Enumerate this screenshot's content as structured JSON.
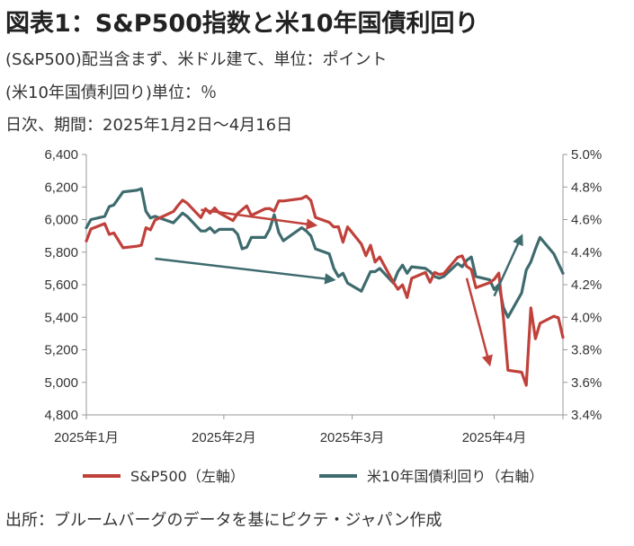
{
  "header": {
    "title": "図表1：S&P500指数と米10年国債利回り",
    "subtitle_1": "(S&P500)配当含まず、米ドル建て、単位：ポイント",
    "subtitle_2": "(米10年国債利回り)単位：％",
    "subtitle_3": "日次、期間：2025年1月2日～4月16日"
  },
  "source": "出所：ブルームバーグのデータを基にピクテ・ジャパン作成",
  "colors": {
    "sp500": "#c0413b",
    "yield": "#3e6b6e",
    "axis": "#999999"
  },
  "chart_data": {
    "type": "line",
    "title": "図表1：S&P500指数と米10年国債利回り",
    "x_tick_labels": [
      "2025年1月",
      "2025年2月",
      "2025年3月",
      "2025年4月"
    ],
    "x_range": [
      "2025-01-02",
      "2025-04-16"
    ],
    "y_left": {
      "ylim": [
        4800,
        6400
      ],
      "ticks": [
        "4,800",
        "5,000",
        "5,200",
        "5,400",
        "5,600",
        "5,800",
        "6,000",
        "6,200",
        "6,400"
      ]
    },
    "y_right": {
      "ylim": [
        3.4,
        5.0
      ],
      "ticks": [
        "3.4%",
        "3.6%",
        "3.8%",
        "4.0%",
        "4.2%",
        "4.4%",
        "4.6%",
        "4.8%",
        "5.0%"
      ]
    },
    "grid": false,
    "legend_position": "bottom",
    "series": [
      {
        "name": "S&P500（左軸）",
        "axis": "left",
        "color": "#c0413b",
        "points": [
          [
            "2025-01-02",
            5868
          ],
          [
            "2025-01-03",
            5942
          ],
          [
            "2025-01-06",
            5975
          ],
          [
            "2025-01-07",
            5909
          ],
          [
            "2025-01-08",
            5918
          ],
          [
            "2025-01-10",
            5827
          ],
          [
            "2025-01-13",
            5836
          ],
          [
            "2025-01-14",
            5842
          ],
          [
            "2025-01-15",
            5950
          ],
          [
            "2025-01-16",
            5937
          ],
          [
            "2025-01-17",
            5997
          ],
          [
            "2025-01-21",
            6049
          ],
          [
            "2025-01-22",
            6086
          ],
          [
            "2025-01-23",
            6119
          ],
          [
            "2025-01-24",
            6101
          ],
          [
            "2025-01-27",
            6012
          ],
          [
            "2025-01-28",
            6067
          ],
          [
            "2025-01-29",
            6039
          ],
          [
            "2025-01-30",
            6071
          ],
          [
            "2025-01-31",
            6041
          ],
          [
            "2025-02-03",
            5994
          ],
          [
            "2025-02-04",
            6037
          ],
          [
            "2025-02-05",
            6061
          ],
          [
            "2025-02-06",
            6084
          ],
          [
            "2025-02-07",
            6026
          ],
          [
            "2025-02-10",
            6066
          ],
          [
            "2025-02-11",
            6068
          ],
          [
            "2025-02-12",
            6052
          ],
          [
            "2025-02-13",
            6115
          ],
          [
            "2025-02-14",
            6114
          ],
          [
            "2025-02-18",
            6129
          ],
          [
            "2025-02-19",
            6144
          ],
          [
            "2025-02-20",
            6117
          ],
          [
            "2025-02-21",
            6013
          ],
          [
            "2025-02-24",
            5983
          ],
          [
            "2025-02-25",
            5955
          ],
          [
            "2025-02-26",
            5956
          ],
          [
            "2025-02-27",
            5861
          ],
          [
            "2025-02-28",
            5955
          ],
          [
            "2025-03-03",
            5850
          ],
          [
            "2025-03-04",
            5778
          ],
          [
            "2025-03-05",
            5842
          ],
          [
            "2025-03-06",
            5739
          ],
          [
            "2025-03-07",
            5770
          ],
          [
            "2025-03-10",
            5615
          ],
          [
            "2025-03-11",
            5572
          ],
          [
            "2025-03-12",
            5599
          ],
          [
            "2025-03-13",
            5521
          ],
          [
            "2025-03-14",
            5639
          ],
          [
            "2025-03-17",
            5675
          ],
          [
            "2025-03-18",
            5615
          ],
          [
            "2025-03-19",
            5675
          ],
          [
            "2025-03-20",
            5663
          ],
          [
            "2025-03-21",
            5668
          ],
          [
            "2025-03-24",
            5768
          ],
          [
            "2025-03-25",
            5777
          ],
          [
            "2025-03-26",
            5712
          ],
          [
            "2025-03-27",
            5693
          ],
          [
            "2025-03-28",
            5581
          ],
          [
            "2025-03-31",
            5612
          ],
          [
            "2025-04-01",
            5633
          ],
          [
            "2025-04-02",
            5671
          ],
          [
            "2025-04-03",
            5397
          ],
          [
            "2025-04-04",
            5074
          ],
          [
            "2025-04-07",
            5062
          ],
          [
            "2025-04-08",
            4982
          ],
          [
            "2025-04-09",
            5457
          ],
          [
            "2025-04-10",
            5268
          ],
          [
            "2025-04-11",
            5363
          ],
          [
            "2025-04-14",
            5406
          ],
          [
            "2025-04-15",
            5397
          ],
          [
            "2025-04-16",
            5276
          ]
        ]
      },
      {
        "name": "米10年国債利回り（右軸）",
        "axis": "right",
        "color": "#3e6b6e",
        "points": [
          [
            "2025-01-02",
            4.55
          ],
          [
            "2025-01-03",
            4.6
          ],
          [
            "2025-01-06",
            4.62
          ],
          [
            "2025-01-07",
            4.68
          ],
          [
            "2025-01-08",
            4.69
          ],
          [
            "2025-01-10",
            4.77
          ],
          [
            "2025-01-13",
            4.78
          ],
          [
            "2025-01-14",
            4.79
          ],
          [
            "2025-01-15",
            4.65
          ],
          [
            "2025-01-16",
            4.61
          ],
          [
            "2025-01-17",
            4.62
          ],
          [
            "2025-01-21",
            4.58
          ],
          [
            "2025-01-22",
            4.61
          ],
          [
            "2025-01-23",
            4.64
          ],
          [
            "2025-01-24",
            4.62
          ],
          [
            "2025-01-27",
            4.53
          ],
          [
            "2025-01-28",
            4.53
          ],
          [
            "2025-01-29",
            4.55
          ],
          [
            "2025-01-30",
            4.52
          ],
          [
            "2025-01-31",
            4.54
          ],
          [
            "2025-02-03",
            4.54
          ],
          [
            "2025-02-04",
            4.51
          ],
          [
            "2025-02-05",
            4.42
          ],
          [
            "2025-02-06",
            4.43
          ],
          [
            "2025-02-07",
            4.49
          ],
          [
            "2025-02-10",
            4.49
          ],
          [
            "2025-02-11",
            4.54
          ],
          [
            "2025-02-12",
            4.63
          ],
          [
            "2025-02-13",
            4.52
          ],
          [
            "2025-02-14",
            4.47
          ],
          [
            "2025-02-18",
            4.55
          ],
          [
            "2025-02-19",
            4.53
          ],
          [
            "2025-02-20",
            4.5
          ],
          [
            "2025-02-21",
            4.42
          ],
          [
            "2025-02-24",
            4.39
          ],
          [
            "2025-02-25",
            4.3
          ],
          [
            "2025-02-26",
            4.25
          ],
          [
            "2025-02-27",
            4.27
          ],
          [
            "2025-02-28",
            4.21
          ],
          [
            "2025-03-03",
            4.16
          ],
          [
            "2025-03-04",
            4.22
          ],
          [
            "2025-03-05",
            4.28
          ],
          [
            "2025-03-06",
            4.28
          ],
          [
            "2025-03-07",
            4.3
          ],
          [
            "2025-03-10",
            4.21
          ],
          [
            "2025-03-11",
            4.28
          ],
          [
            "2025-03-12",
            4.32
          ],
          [
            "2025-03-13",
            4.27
          ],
          [
            "2025-03-14",
            4.31
          ],
          [
            "2025-03-17",
            4.3
          ],
          [
            "2025-03-18",
            4.28
          ],
          [
            "2025-03-19",
            4.25
          ],
          [
            "2025-03-20",
            4.24
          ],
          [
            "2025-03-21",
            4.25
          ],
          [
            "2025-03-24",
            4.33
          ],
          [
            "2025-03-25",
            4.31
          ],
          [
            "2025-03-26",
            4.35
          ],
          [
            "2025-03-27",
            4.37
          ],
          [
            "2025-03-28",
            4.25
          ],
          [
            "2025-03-31",
            4.23
          ],
          [
            "2025-04-01",
            4.17
          ],
          [
            "2025-04-02",
            4.2
          ],
          [
            "2025-04-03",
            4.06
          ],
          [
            "2025-04-04",
            4.0
          ],
          [
            "2025-04-07",
            4.15
          ],
          [
            "2025-04-08",
            4.29
          ],
          [
            "2025-04-09",
            4.34
          ],
          [
            "2025-04-10",
            4.42
          ],
          [
            "2025-04-11",
            4.49
          ],
          [
            "2025-04-14",
            4.39
          ],
          [
            "2025-04-15",
            4.33
          ],
          [
            "2025-04-16",
            4.27
          ]
        ]
      }
    ],
    "annotations": [
      {
        "type": "arrow",
        "color": "#c0413b",
        "from": [
          "2025-01-27",
          6060
        ],
        "to": [
          "2025-02-21",
          5965
        ]
      },
      {
        "type": "arrow",
        "color": "#3e6b6e",
        "from": [
          "2025-01-17",
          4.36
        ],
        "to": [
          "2025-02-25",
          4.23
        ]
      },
      {
        "type": "arrow",
        "color": "#c0413b",
        "from": [
          "2025-03-26",
          5640
        ],
        "to": [
          "2025-03-31",
          5110
        ]
      },
      {
        "type": "arrow",
        "color": "#3e6b6e",
        "from": [
          "2025-04-01",
          4.13
        ],
        "to": [
          "2025-04-07",
          4.5
        ]
      }
    ]
  }
}
